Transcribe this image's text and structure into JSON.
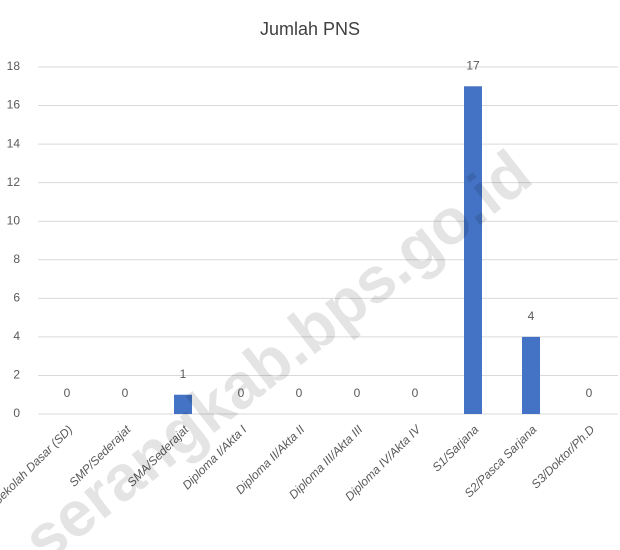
{
  "chart_data": {
    "type": "bar",
    "title": "Jumlah PNS",
    "categories": [
      "Sekolah Dasar (SD)",
      "SMP/Sederajat",
      "SMA/Sederajat",
      "Diploma I/Akta I",
      "Diploma II/Akta II",
      "Diploma III/Akta III",
      "Diploma IV/Akta IV",
      "S1/Sarjana",
      "S2/Pasca Sarjana",
      "S3/Doktor/Ph.D"
    ],
    "values": [
      0,
      0,
      1,
      0,
      0,
      0,
      0,
      17,
      4,
      0
    ],
    "color": "#4472c4",
    "ylim": [
      0,
      18
    ],
    "yticks": [
      0,
      2,
      4,
      6,
      8,
      10,
      12,
      14,
      16,
      18
    ],
    "grid": true,
    "watermark": "serangkab.bps.go.id"
  }
}
